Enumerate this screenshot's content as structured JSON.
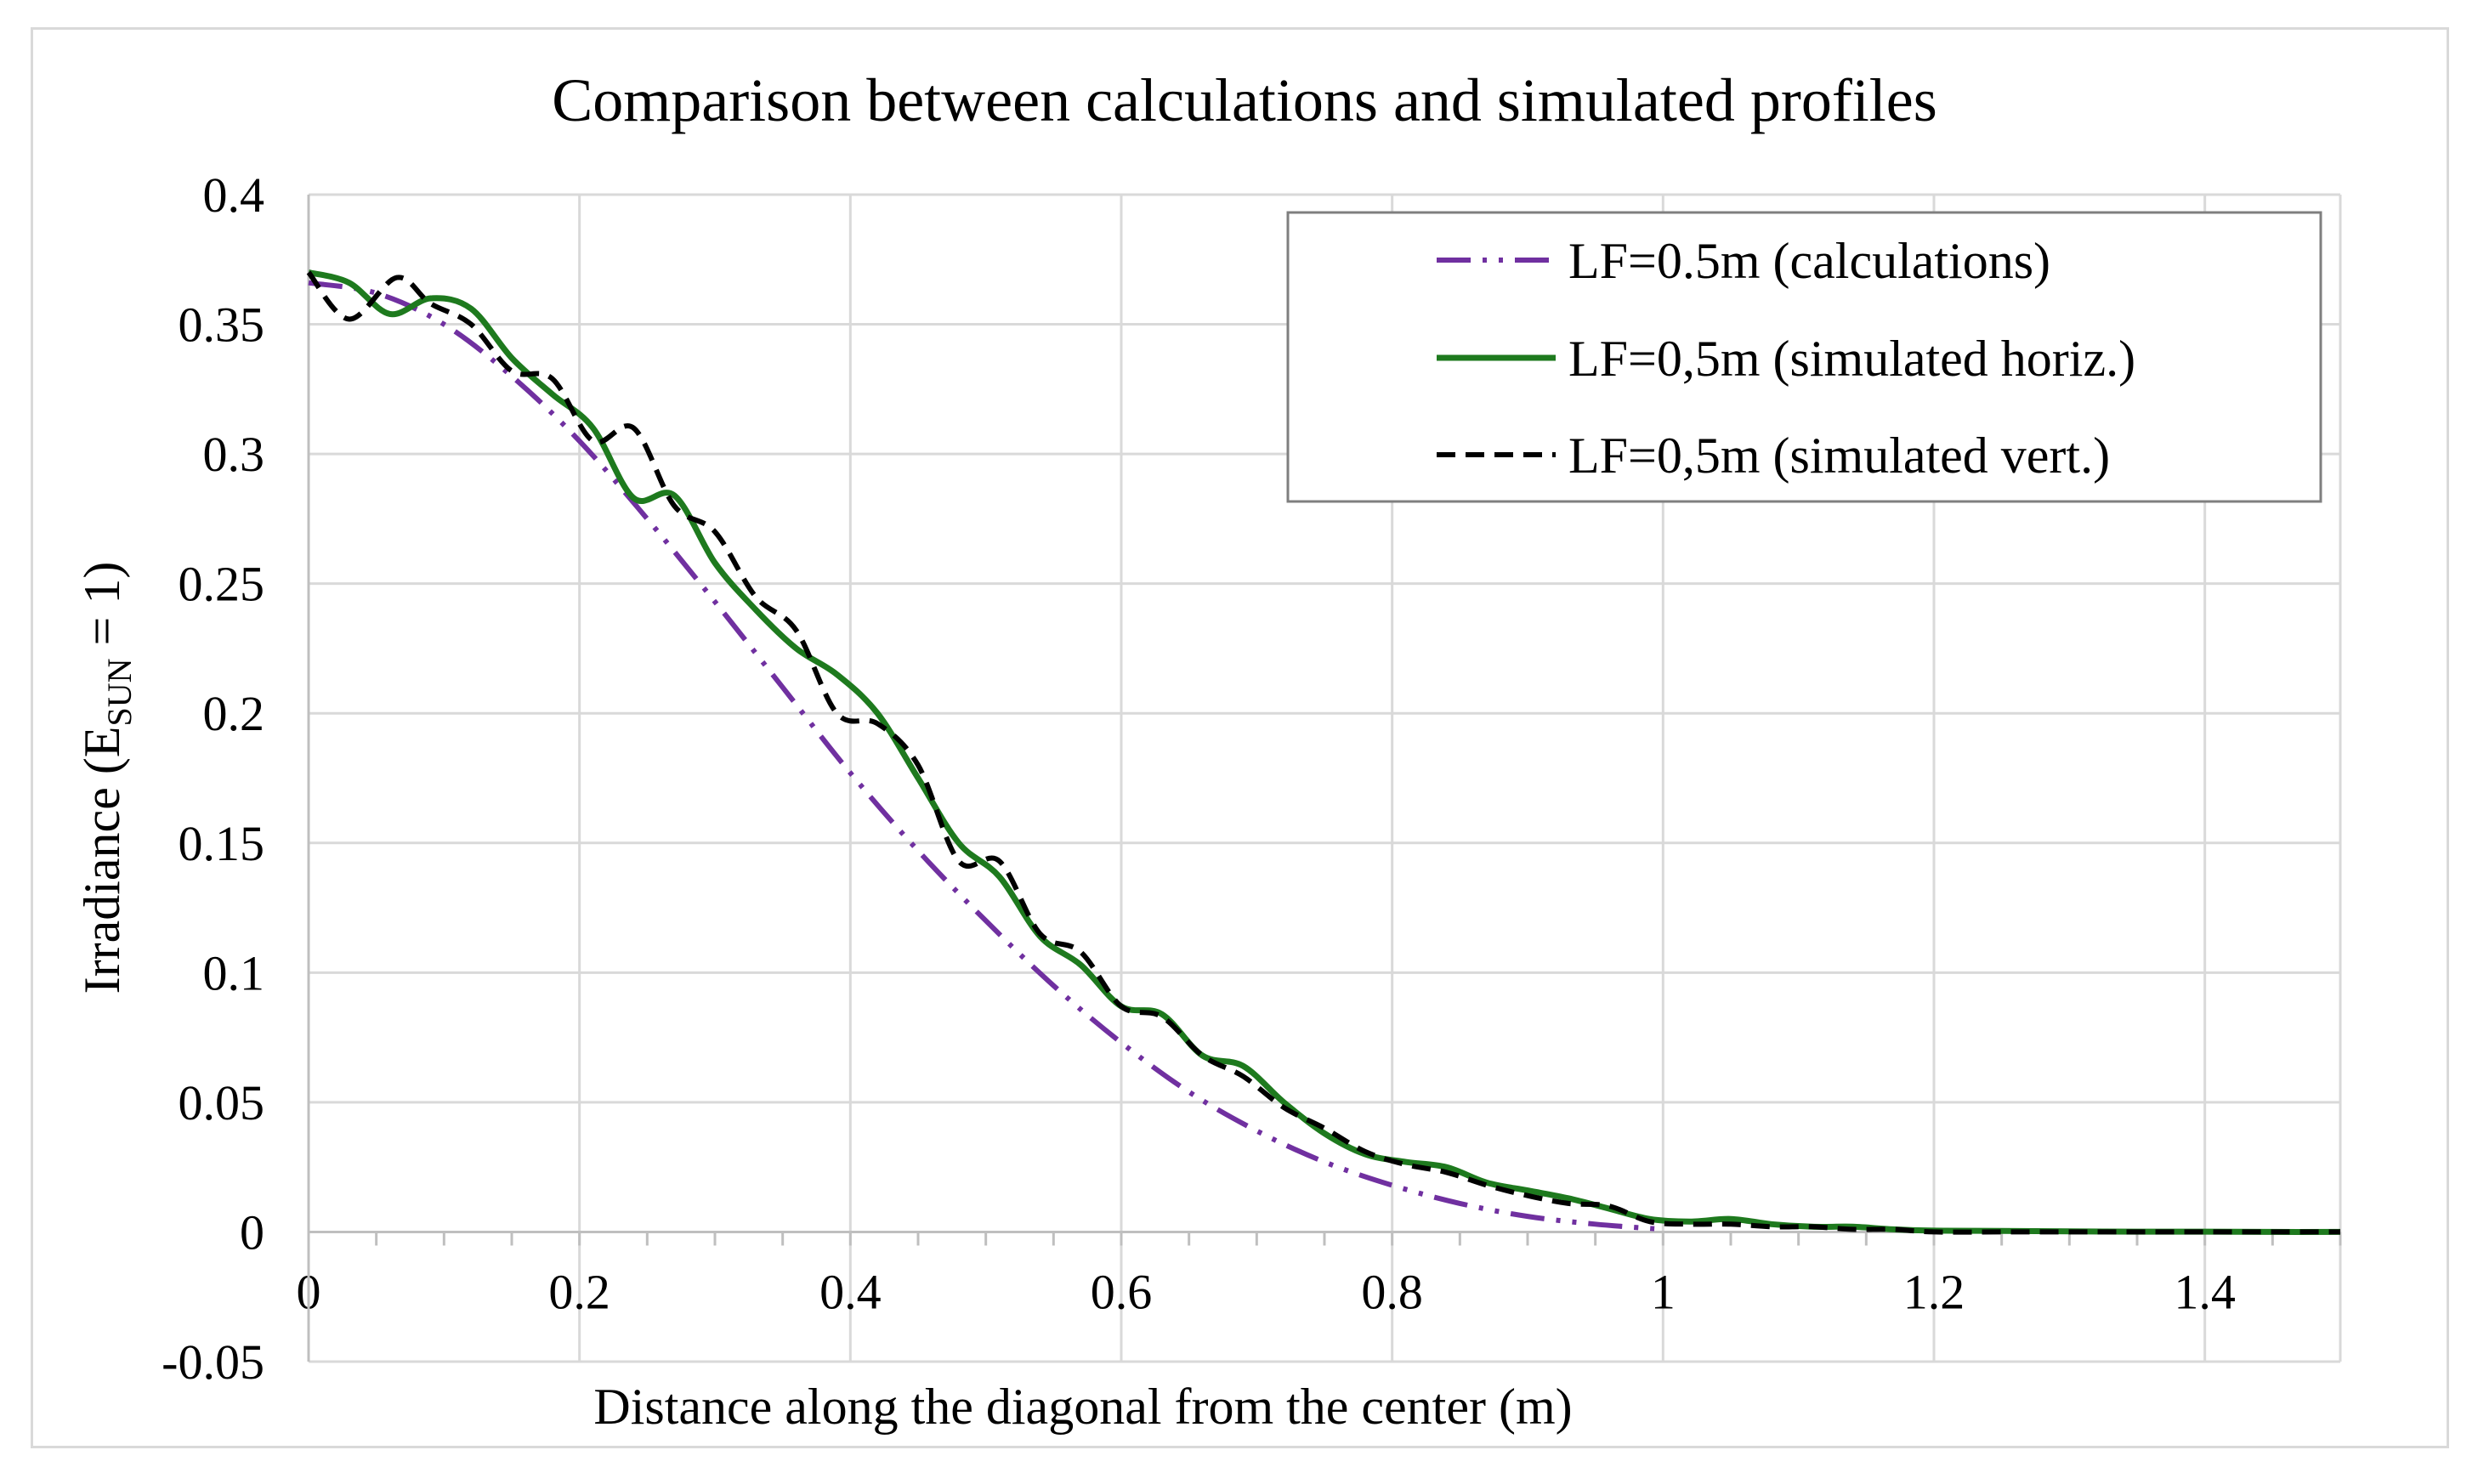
{
  "chart_data": {
    "type": "line",
    "title": "Comparison between calculations and simulated profiles",
    "xlabel": "Distance along the diagonal from the center (m)",
    "ylabel": {
      "prefix": "Irradiance (E",
      "subscript": "SUN",
      "suffix": " = 1)"
    },
    "xlim": [
      0,
      1.5
    ],
    "ylim": [
      -0.05,
      0.4
    ],
    "x_ticks": [
      0,
      0.2,
      0.4,
      0.6,
      0.8,
      1,
      1.2,
      1.4
    ],
    "x_tick_labels": [
      "0",
      "0.2",
      "0.4",
      "0.6",
      "0.8",
      "1",
      "1.2",
      "1.4"
    ],
    "y_ticks": [
      -0.05,
      0,
      0.05,
      0.1,
      0.15,
      0.2,
      0.25,
      0.3,
      0.35,
      0.4
    ],
    "y_tick_labels": [
      "-0.05",
      "0",
      "0.05",
      "0.1",
      "0.15",
      "0.2",
      "0.25",
      "0.3",
      "0.35",
      "0.4"
    ],
    "grid": true,
    "legend_position": "top-right",
    "series": [
      {
        "name": "LF=0.5m (calculations)",
        "color": "#7030a0",
        "style": "dash-dot-dot",
        "x": [
          0,
          0.05,
          0.1,
          0.15,
          0.2,
          0.25,
          0.3,
          0.35,
          0.4,
          0.45,
          0.5,
          0.55,
          0.6,
          0.65,
          0.7,
          0.75,
          0.8,
          0.85,
          0.9,
          0.95,
          1.0
        ],
        "y": [
          0.366,
          0.362,
          0.35,
          0.33,
          0.305,
          0.275,
          0.243,
          0.21,
          0.177,
          0.147,
          0.12,
          0.095,
          0.073,
          0.054,
          0.039,
          0.027,
          0.018,
          0.011,
          0.006,
          0.003,
          0.001
        ]
      },
      {
        "name": "LF=0,5m (simulated horiz.)",
        "color": "#1e7a1e",
        "style": "solid",
        "x": [
          0,
          0.03,
          0.06,
          0.09,
          0.12,
          0.15,
          0.18,
          0.21,
          0.24,
          0.27,
          0.3,
          0.33,
          0.36,
          0.39,
          0.42,
          0.45,
          0.48,
          0.51,
          0.54,
          0.57,
          0.6,
          0.63,
          0.66,
          0.69,
          0.72,
          0.75,
          0.78,
          0.81,
          0.84,
          0.87,
          0.9,
          0.93,
          0.96,
          0.99,
          1.02,
          1.05,
          1.08,
          1.11,
          1.14,
          1.17,
          1.2,
          1.25,
          1.3,
          1.35,
          1.4,
          1.45,
          1.5
        ],
        "y": [
          0.37,
          0.366,
          0.354,
          0.36,
          0.356,
          0.337,
          0.323,
          0.31,
          0.283,
          0.284,
          0.258,
          0.24,
          0.225,
          0.215,
          0.2,
          0.175,
          0.15,
          0.137,
          0.114,
          0.103,
          0.087,
          0.084,
          0.068,
          0.064,
          0.05,
          0.038,
          0.03,
          0.027,
          0.025,
          0.019,
          0.016,
          0.013,
          0.009,
          0.005,
          0.004,
          0.005,
          0.003,
          0.002,
          0.002,
          0.001,
          0.0005,
          0.0004,
          0.0002,
          0.0001,
          0.0001,
          0.0,
          0.0
        ]
      },
      {
        "name": "LF=0,5m (simulated vert.)",
        "color": "#000000",
        "style": "dashed",
        "x": [
          0,
          0.03,
          0.065,
          0.09,
          0.12,
          0.15,
          0.18,
          0.21,
          0.24,
          0.27,
          0.3,
          0.33,
          0.36,
          0.39,
          0.42,
          0.45,
          0.48,
          0.51,
          0.54,
          0.57,
          0.6,
          0.63,
          0.66,
          0.69,
          0.72,
          0.75,
          0.78,
          0.81,
          0.84,
          0.87,
          0.9,
          0.93,
          0.96,
          0.99,
          1.02,
          1.05,
          1.08,
          1.11,
          1.14,
          1.17,
          1.2,
          1.25,
          1.3,
          1.35,
          1.4,
          1.45,
          1.5
        ],
        "y": [
          0.37,
          0.352,
          0.368,
          0.358,
          0.35,
          0.332,
          0.329,
          0.305,
          0.31,
          0.28,
          0.27,
          0.245,
          0.232,
          0.2,
          0.196,
          0.18,
          0.143,
          0.143,
          0.115,
          0.108,
          0.087,
          0.083,
          0.068,
          0.06,
          0.048,
          0.04,
          0.031,
          0.026,
          0.023,
          0.018,
          0.014,
          0.011,
          0.01,
          0.004,
          0.003,
          0.003,
          0.002,
          0.002,
          0.001,
          0.001,
          0.0,
          0.0,
          0.0,
          0.0,
          0.0,
          0.0,
          0.0
        ]
      }
    ]
  }
}
